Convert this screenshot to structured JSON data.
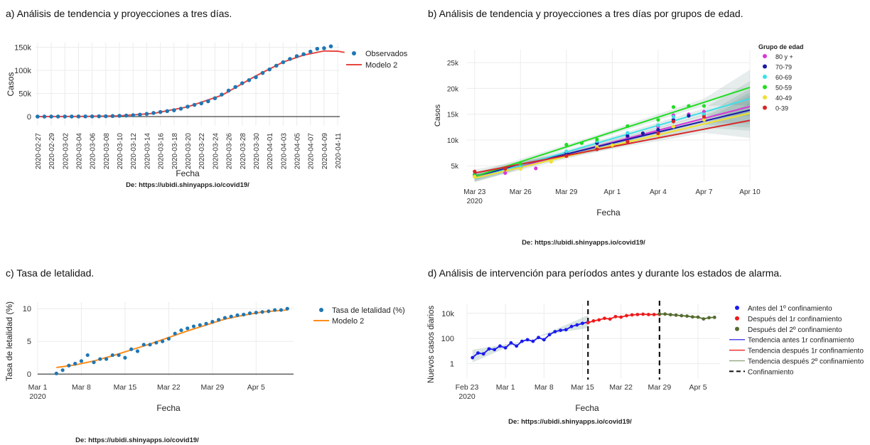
{
  "chart_data": [
    {
      "id": "a",
      "type": "scatter",
      "title": "a) Análisis de tendencia y proyecciones a tres días.",
      "xlabel": "Fecha",
      "ylabel": "Casos",
      "source": "De: https://ubidi.shinyapps.io/covid19/",
      "x_ticks": [
        "2020-02-27",
        "2020-02-29",
        "2020-03-02",
        "2020-03-04",
        "2020-03-06",
        "2020-03-08",
        "2020-03-10",
        "2020-03-12",
        "2020-03-14",
        "2020-03-16",
        "2020-03-18",
        "2020-03-20",
        "2020-03-22",
        "2020-03-24",
        "2020-03-26",
        "2020-03-28",
        "2020-03-30",
        "2020-04-01",
        "2020-04-03",
        "2020-04-05",
        "2020-04-07",
        "2020-04-09",
        "2020-04-11"
      ],
      "y_ticks": [
        "0",
        "50k",
        "100k",
        "150k"
      ],
      "ylim": [
        -20000,
        160000
      ],
      "legend": [
        "Observados",
        "Modelo 2"
      ],
      "colors": {
        "observed": "#1f77b4",
        "model": "#e8473f"
      },
      "series": [
        {
          "name": "Observados",
          "x": [
            "2020-02-27",
            "2020-02-28",
            "2020-02-29",
            "2020-03-01",
            "2020-03-02",
            "2020-03-03",
            "2020-03-04",
            "2020-03-05",
            "2020-03-06",
            "2020-03-07",
            "2020-03-08",
            "2020-03-09",
            "2020-03-10",
            "2020-03-11",
            "2020-03-12",
            "2020-03-13",
            "2020-03-14",
            "2020-03-15",
            "2020-03-16",
            "2020-03-17",
            "2020-03-18",
            "2020-03-19",
            "2020-03-20",
            "2020-03-21",
            "2020-03-22",
            "2020-03-23",
            "2020-03-24",
            "2020-03-25",
            "2020-03-26",
            "2020-03-27",
            "2020-03-28",
            "2020-03-29",
            "2020-03-30",
            "2020-03-31",
            "2020-04-01",
            "2020-04-02",
            "2020-04-03",
            "2020-04-04",
            "2020-04-05",
            "2020-04-06",
            "2020-04-07",
            "2020-04-08",
            "2020-04-09",
            "2020-04-10"
          ],
          "y": [
            20,
            30,
            50,
            80,
            120,
            160,
            220,
            300,
            400,
            600,
            700,
            1200,
            1700,
            2200,
            3000,
            4200,
            5800,
            7800,
            9900,
            11800,
            13700,
            17100,
            21500,
            25400,
            28600,
            33100,
            39700,
            47600,
            56200,
            64000,
            72200,
            78800,
            85200,
            94400,
            102100,
            110200,
            117700,
            124700,
            130700,
            135000,
            140500,
            146700,
            148000,
            152000
          ]
        },
        {
          "name": "Modelo 2",
          "x": [
            "2020-02-27",
            "2020-03-05",
            "2020-03-10",
            "2020-03-15",
            "2020-03-20",
            "2020-03-25",
            "2020-03-30",
            "2020-04-03",
            "2020-04-06",
            "2020-04-09",
            "2020-04-11",
            "2020-04-12"
          ],
          "y": [
            0,
            300,
            1500,
            7000,
            21000,
            46000,
            88000,
            118000,
            133000,
            142000,
            141500,
            139000
          ]
        }
      ]
    },
    {
      "id": "b",
      "type": "scatter",
      "title": "b) Análisis de tendencia y proyecciones a tres días por grupos de edad.",
      "xlabel": "Fecha",
      "ylabel": "Casos",
      "source": "De: https://ubidi.shinyapps.io/covid19/",
      "x_ticks": [
        {
          "day": 0,
          "label": "Mar 23",
          "sub": "2020"
        },
        {
          "day": 3,
          "label": "Mar 26"
        },
        {
          "day": 6,
          "label": "Mar 29"
        },
        {
          "day": 9,
          "label": "Apr 1"
        },
        {
          "day": 12,
          "label": "Apr 4"
        },
        {
          "day": 15,
          "label": "Apr 7"
        },
        {
          "day": 18,
          "label": "Apr 10"
        }
      ],
      "y_ticks": [
        5000,
        10000,
        15000,
        20000,
        25000
      ],
      "y_tick_labels": [
        "5k",
        "10k",
        "15k",
        "20k",
        "25k"
      ],
      "xlim": [
        -0.5,
        18
      ],
      "ylim": [
        2000,
        27500
      ],
      "legend_title": "Grupo de edad",
      "series": [
        {
          "name": "80 y +",
          "color": "#d63ad6",
          "points": [
            [
              0,
              3000
            ],
            [
              2,
              3600
            ],
            [
              4,
              4500
            ],
            [
              6,
              6900
            ],
            [
              8,
              8600
            ],
            [
              10,
              10600
            ],
            [
              12,
              12600
            ],
            [
              13,
              14800
            ],
            [
              14,
              15000
            ],
            [
              15,
              15500
            ]
          ],
          "line": [
            [
              0,
              2600
            ],
            [
              18,
              16500
            ]
          ]
        },
        {
          "name": "70-79",
          "color": "#1a1aa8",
          "points": [
            [
              0,
              3300
            ],
            [
              3,
              4900
            ],
            [
              6,
              7600
            ],
            [
              8,
              9400
            ],
            [
              10,
              10800
            ],
            [
              11,
              11300
            ],
            [
              12,
              12000
            ],
            [
              13,
              13900
            ],
            [
              14,
              14700
            ],
            [
              15,
              14900
            ]
          ],
          "line": [
            [
              0,
              3000
            ],
            [
              18,
              15800
            ]
          ]
        },
        {
          "name": "60-69",
          "color": "#3ee0e8",
          "points": [
            [
              0,
              2900
            ],
            [
              3,
              4900
            ],
            [
              6,
              7800
            ],
            [
              8,
              9800
            ],
            [
              10,
              11400
            ],
            [
              12,
              12900
            ],
            [
              13,
              14500
            ],
            [
              15,
              15000
            ]
          ],
          "line": [
            [
              0,
              2500
            ],
            [
              18,
              18000
            ]
          ]
        },
        {
          "name": "50-59",
          "color": "#22dd22",
          "points": [
            [
              0,
              3200
            ],
            [
              3,
              5400
            ],
            [
              6,
              9100
            ],
            [
              7,
              9400
            ],
            [
              8,
              10100
            ],
            [
              10,
              12700
            ],
            [
              12,
              13900
            ],
            [
              13,
              16400
            ],
            [
              14,
              16600
            ],
            [
              15,
              16600
            ]
          ],
          "line": [
            [
              0,
              2900
            ],
            [
              18,
              20200
            ]
          ]
        },
        {
          "name": "40-49",
          "color": "#f0e030",
          "points": [
            [
              0,
              2900
            ],
            [
              3,
              4400
            ],
            [
              5,
              5800
            ],
            [
              8,
              8600
            ],
            [
              9,
              9000
            ],
            [
              12,
              10900
            ],
            [
              13,
              12600
            ],
            [
              15,
              13900
            ]
          ],
          "line": [
            [
              0,
              2600
            ],
            [
              18,
              15200
            ]
          ]
        },
        {
          "name": "0-39",
          "color": "#d62828",
          "points": [
            [
              0,
              3900
            ],
            [
              2,
              4400
            ],
            [
              6,
              6900
            ],
            [
              8,
              8200
            ],
            [
              10,
              9700
            ],
            [
              12,
              11300
            ],
            [
              13,
              13600
            ],
            [
              15,
              14500
            ]
          ],
          "line": [
            [
              0,
              3600
            ],
            [
              18,
              13800
            ]
          ]
        }
      ]
    },
    {
      "id": "c",
      "type": "scatter",
      "title": "c) Tasa de letalidad.",
      "xlabel": "Fecha",
      "ylabel": "Tasa de letalidad (%)",
      "source": "De: https://ubidi.shinyapps.io/covid19/",
      "x_ticks": [
        {
          "day": 0,
          "label": "Mar 1",
          "sub": "2020"
        },
        {
          "day": 7,
          "label": "Mar 8"
        },
        {
          "day": 14,
          "label": "Mar 15"
        },
        {
          "day": 21,
          "label": "Mar 22"
        },
        {
          "day": 28,
          "label": "Mar 29"
        },
        {
          "day": 35,
          "label": "Apr 5"
        }
      ],
      "y_ticks": [
        0,
        5,
        10
      ],
      "xlim": [
        0,
        41
      ],
      "ylim": [
        -0.3,
        11
      ],
      "legend": [
        "Tasa de letalidad (%)",
        "Modelo 2"
      ],
      "colors": {
        "observed": "#1f77b4",
        "model": "#ff8c1a"
      },
      "observed": [
        [
          3,
          0.1
        ],
        [
          4,
          0.6
        ],
        [
          5,
          1.3
        ],
        [
          6,
          1.6
        ],
        [
          7,
          2.0
        ],
        [
          8,
          2.9
        ],
        [
          9,
          1.8
        ],
        [
          10,
          2.3
        ],
        [
          11,
          2.3
        ],
        [
          12,
          2.9
        ],
        [
          13,
          2.9
        ],
        [
          14,
          2.5
        ],
        [
          15,
          3.8
        ],
        [
          16,
          3.5
        ],
        [
          17,
          4.5
        ],
        [
          18,
          4.5
        ],
        [
          19,
          4.8
        ],
        [
          20,
          5.0
        ],
        [
          21,
          5.4
        ],
        [
          22,
          6.2
        ],
        [
          23,
          6.7
        ],
        [
          24,
          7.0
        ],
        [
          25,
          7.3
        ],
        [
          26,
          7.5
        ],
        [
          27,
          7.7
        ],
        [
          28,
          8.0
        ],
        [
          29,
          8.3
        ],
        [
          30,
          8.6
        ],
        [
          31,
          8.8
        ],
        [
          32,
          9.0
        ],
        [
          33,
          9.1
        ],
        [
          34,
          9.3
        ],
        [
          35,
          9.4
        ],
        [
          36,
          9.5
        ],
        [
          37,
          9.6
        ],
        [
          38,
          9.8
        ],
        [
          39,
          9.8
        ],
        [
          40,
          10.0
        ]
      ],
      "model": [
        [
          3,
          1.0
        ],
        [
          6,
          1.4
        ],
        [
          9,
          2.0
        ],
        [
          12,
          2.8
        ],
        [
          15,
          3.7
        ],
        [
          18,
          4.6
        ],
        [
          21,
          5.6
        ],
        [
          24,
          6.6
        ],
        [
          27,
          7.5
        ],
        [
          30,
          8.4
        ],
        [
          33,
          9.0
        ],
        [
          36,
          9.5
        ],
        [
          40,
          9.8
        ]
      ]
    },
    {
      "id": "d",
      "type": "scatter",
      "title": "d) Análisis de intervención para períodos antes y durante los estados de alarma.",
      "xlabel": "Fecha",
      "ylabel": "Nuevos casos diarios",
      "source": "De: https://ubidi.shinyapps.io/covid19/",
      "log_y": true,
      "x_ticks": [
        {
          "day": 0,
          "label": "Feb 23",
          "sub": "2020"
        },
        {
          "day": 7,
          "label": "Mar 1"
        },
        {
          "day": 14,
          "label": "Mar 8"
        },
        {
          "day": 21,
          "label": "Mar 15"
        },
        {
          "day": 28,
          "label": "Mar 22"
        },
        {
          "day": 35,
          "label": "Mar 29"
        },
        {
          "day": 42,
          "label": "Apr 5"
        }
      ],
      "y_ticks": [
        1,
        100,
        10000
      ],
      "y_tick_labels": [
        "1",
        "100",
        "10k"
      ],
      "xlim": [
        0,
        46
      ],
      "ylim": [
        0.07,
        60000
      ],
      "vlines": [
        22,
        35
      ],
      "legend": [
        {
          "name": "Antes del 1º confinamiento",
          "kind": "dot",
          "color": "#1a1aee"
        },
        {
          "name": "Después del 1r confinamiento",
          "kind": "dot",
          "color": "#ee1a1a"
        },
        {
          "name": "Después del 2º confinamiento",
          "kind": "dot",
          "color": "#556b2f"
        },
        {
          "name": "Tendencia antes 1r confinamiento",
          "kind": "line",
          "color": "#4a4aee"
        },
        {
          "name": "Tendencia después 1r confinamiento",
          "kind": "line",
          "color": "#ee3333"
        },
        {
          "name": "Tendencia después 2º confinamiento",
          "kind": "line",
          "color": "#9aaa88"
        },
        {
          "name": "Confinamiento",
          "kind": "dash",
          "color": "#111111"
        }
      ],
      "before": [
        [
          1,
          3
        ],
        [
          2,
          7
        ],
        [
          3,
          6
        ],
        [
          4,
          15
        ],
        [
          5,
          13
        ],
        [
          6,
          25
        ],
        [
          7,
          18
        ],
        [
          8,
          45
        ],
        [
          9,
          25
        ],
        [
          10,
          60
        ],
        [
          11,
          80
        ],
        [
          12,
          60
        ],
        [
          13,
          120
        ],
        [
          14,
          80
        ],
        [
          15,
          200
        ],
        [
          16,
          350
        ],
        [
          17,
          450
        ],
        [
          18,
          500
        ],
        [
          19,
          900
        ],
        [
          20,
          1200
        ],
        [
          21,
          1600
        ],
        [
          22,
          2000
        ]
      ],
      "after1": [
        [
          22,
          1800
        ],
        [
          23,
          2500
        ],
        [
          24,
          3000
        ],
        [
          25,
          4000
        ],
        [
          26,
          3500
        ],
        [
          27,
          5500
        ],
        [
          28,
          5000
        ],
        [
          29,
          6500
        ],
        [
          30,
          7500
        ],
        [
          31,
          8000
        ],
        [
          32,
          8500
        ],
        [
          33,
          8000
        ],
        [
          34,
          8000
        ],
        [
          35,
          8200
        ]
      ],
      "after2": [
        [
          35,
          9000
        ],
        [
          36,
          8800
        ],
        [
          37,
          7800
        ],
        [
          38,
          7200
        ],
        [
          39,
          6500
        ],
        [
          40,
          6000
        ],
        [
          41,
          5200
        ],
        [
          42,
          5000
        ],
        [
          43,
          3600
        ],
        [
          44,
          4500
        ],
        [
          45,
          4800
        ]
      ],
      "trend_before": [
        [
          1,
          4
        ],
        [
          22,
          2200
        ]
      ],
      "trend_after1": [
        [
          22,
          2200
        ],
        [
          35,
          8500
        ]
      ],
      "trend_after2": [
        [
          35,
          9500
        ],
        [
          45,
          5000
        ]
      ]
    }
  ]
}
